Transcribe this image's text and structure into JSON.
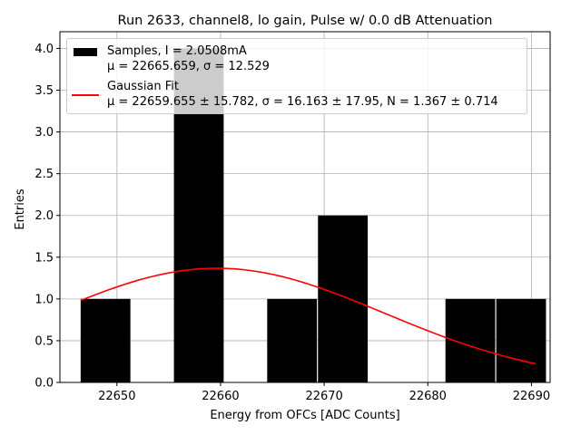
{
  "chart_data": {
    "type": "bar",
    "title": "Run 2633, channel8, lo gain, Pulse w/ 0.0 dB Attenuation",
    "xlabel": "Energy from OFCs [ADC Counts]",
    "ylabel": "Entries",
    "xlim": [
      22644.5,
      22691.8
    ],
    "ylim": [
      0,
      4.2
    ],
    "grid": true,
    "xticks": [
      22650,
      22660,
      22670,
      22680,
      22690
    ],
    "yticks": [
      0.0,
      0.5,
      1.0,
      1.5,
      2.0,
      2.5,
      3.0,
      3.5,
      4.0
    ],
    "histogram": {
      "name": "Samples, I = 2.0508mA",
      "stats": "μ = 22665.659, σ = 12.529",
      "color": "#000000",
      "bins": [
        {
          "x0": 22646.5,
          "x1": 22651.3,
          "value": 1
        },
        {
          "x0": 22655.5,
          "x1": 22660.3,
          "value": 4
        },
        {
          "x0": 22664.5,
          "x1": 22669.3,
          "value": 1
        },
        {
          "x0": 22669.4,
          "x1": 22674.2,
          "value": 2
        },
        {
          "x0": 22681.7,
          "x1": 22686.5,
          "value": 1
        },
        {
          "x0": 22686.6,
          "x1": 22691.4,
          "value": 1
        }
      ]
    },
    "fit": {
      "name": "Gaussian Fit",
      "stats": "μ = 22659.655 ± 15.782, σ = 16.163 ± 17.95, N = 1.367 ± 0.714",
      "color": "#ff0000",
      "mu": 22659.655,
      "sigma": 16.163,
      "amplitude": 1.367,
      "x_range": [
        22646.5,
        22690.4
      ]
    },
    "legend_position": "top-left"
  }
}
